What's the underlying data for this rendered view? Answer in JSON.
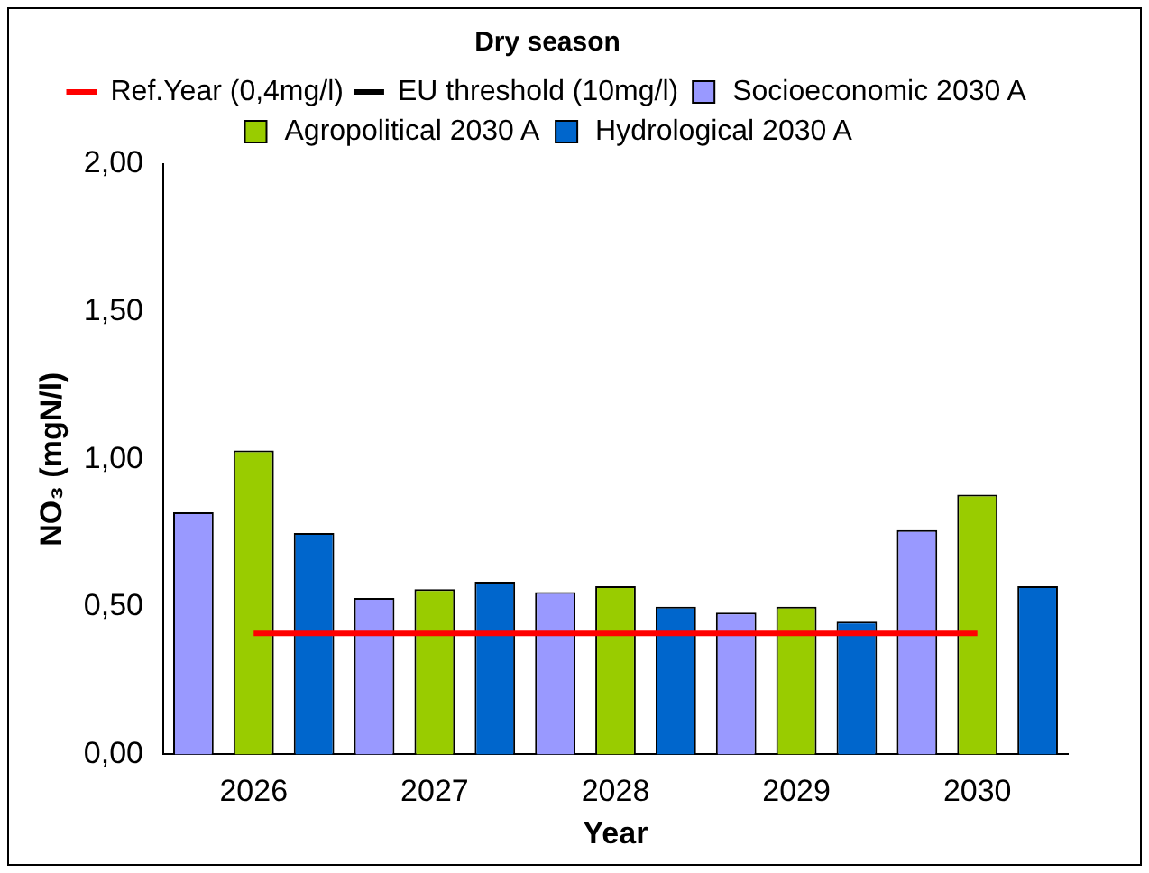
{
  "chart_data": {
    "type": "bar",
    "title": "Dry season",
    "xlabel": "Year",
    "ylabel": "NO₃ (mgN/l)",
    "categories": [
      "2026",
      "2027",
      "2028",
      "2029",
      "2030"
    ],
    "series": [
      {
        "name": "Socioeconomic 2030 A",
        "color": "#9999ff",
        "values": [
          0.82,
          0.53,
          0.55,
          0.48,
          0.76
        ]
      },
      {
        "name": "Agropolitical 2030 A",
        "color": "#99cc00",
        "values": [
          1.03,
          0.56,
          0.57,
          0.5,
          0.88
        ]
      },
      {
        "name": "Hydrological 2030 A",
        "color": "#0066cc",
        "values": [
          0.75,
          0.585,
          0.5,
          0.45,
          0.57
        ]
      },
      {
        "name": "Ref.Year (0,4mg/l)",
        "type": "line",
        "color": "#ff0000",
        "line_style": "solid",
        "values": [
          0.41,
          0.41,
          0.41,
          0.41,
          0.41
        ]
      },
      {
        "name": "EU threshold (10mg/l)",
        "type": "line",
        "color": "#000000",
        "line_style": "dashed",
        "values": [
          null,
          null,
          null,
          null,
          null
        ]
      }
    ],
    "ylim": [
      0,
      2
    ],
    "yticks": [
      {
        "value": 0,
        "label": "0,00"
      },
      {
        "value": 0.5,
        "label": "0,50"
      },
      {
        "value": 1,
        "label": "1,00"
      },
      {
        "value": 1.5,
        "label": "1,50"
      },
      {
        "value": 2,
        "label": "2,00"
      }
    ],
    "grid": false,
    "legend": "top"
  }
}
